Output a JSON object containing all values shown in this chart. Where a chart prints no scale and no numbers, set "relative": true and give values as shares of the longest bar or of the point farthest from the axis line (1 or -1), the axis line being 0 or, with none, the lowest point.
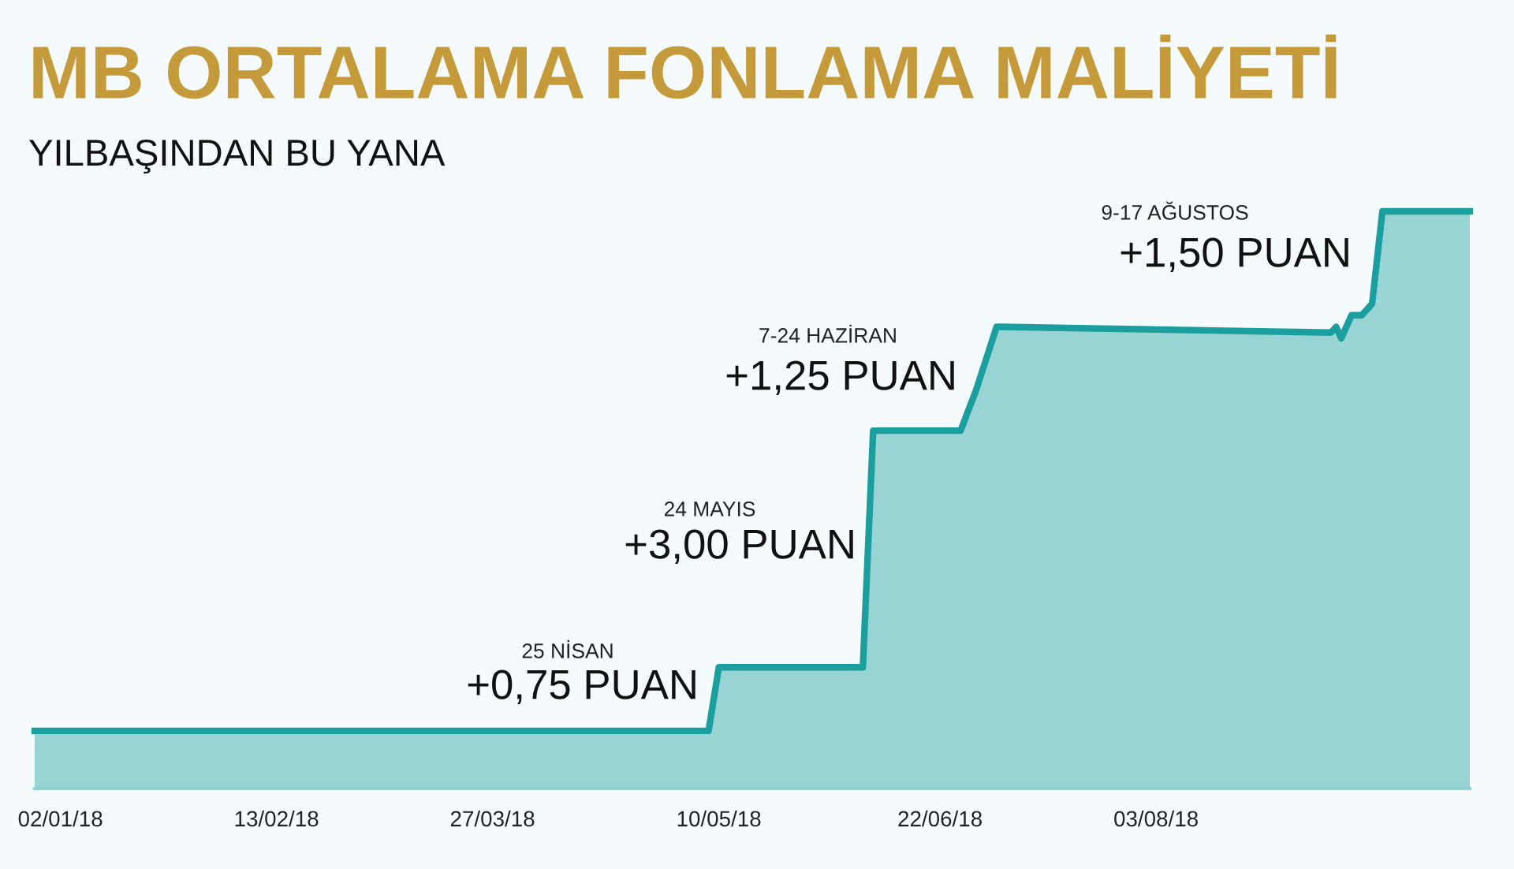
{
  "chart_data": {
    "type": "area",
    "title": "MB ORTALAMA FONLAMA MALİYETİ",
    "subtitle": "YILBAŞINDAN BU YANA",
    "relative": true,
    "x": [
      "2017-12-28",
      "2018-05-08",
      "2018-05-10",
      "2018-06-07",
      "2018-06-09",
      "2018-06-26",
      "2018-06-29",
      "2018-07-03",
      "2018-09-06",
      "2018-09-07",
      "2018-09-08",
      "2018-09-10",
      "2018-09-12",
      "2018-09-14",
      "2018-09-16",
      "2018-10-03"
    ],
    "series": [
      {
        "color": "#1a9e9e",
        "values": [
          0.1,
          0.1,
          0.21,
          0.21,
          0.62,
          0.62,
          0.69,
          0.8,
          0.79,
          0.8,
          0.78,
          0.82,
          0.82,
          0.84,
          1.0,
          1.0
        ]
      }
    ],
    "xlim": [
      "2017-12-28",
      "2018-10-03"
    ],
    "xticks": [
      {
        "value": "2018-01-02",
        "label": "02/01/18"
      },
      {
        "value": "2018-02-13",
        "label": "13/02/18"
      },
      {
        "value": "2018-03-27",
        "label": "27/03/18"
      },
      {
        "value": "2018-05-10",
        "label": "10/05/18"
      },
      {
        "value": "2018-06-22",
        "label": "22/06/18"
      },
      {
        "value": "2018-08-03",
        "label": "03/08/18"
      }
    ],
    "annotations": [
      "25 NİSAN",
      "+0,75 PUAN",
      "24 MAYIS",
      "+3,00 PUAN",
      "7-24 HAZİRAN",
      "+1,25 PUAN",
      "9-17 AĞUSTOS",
      "+1,50 PUAN"
    ],
    "grid": false,
    "legend": false
  }
}
